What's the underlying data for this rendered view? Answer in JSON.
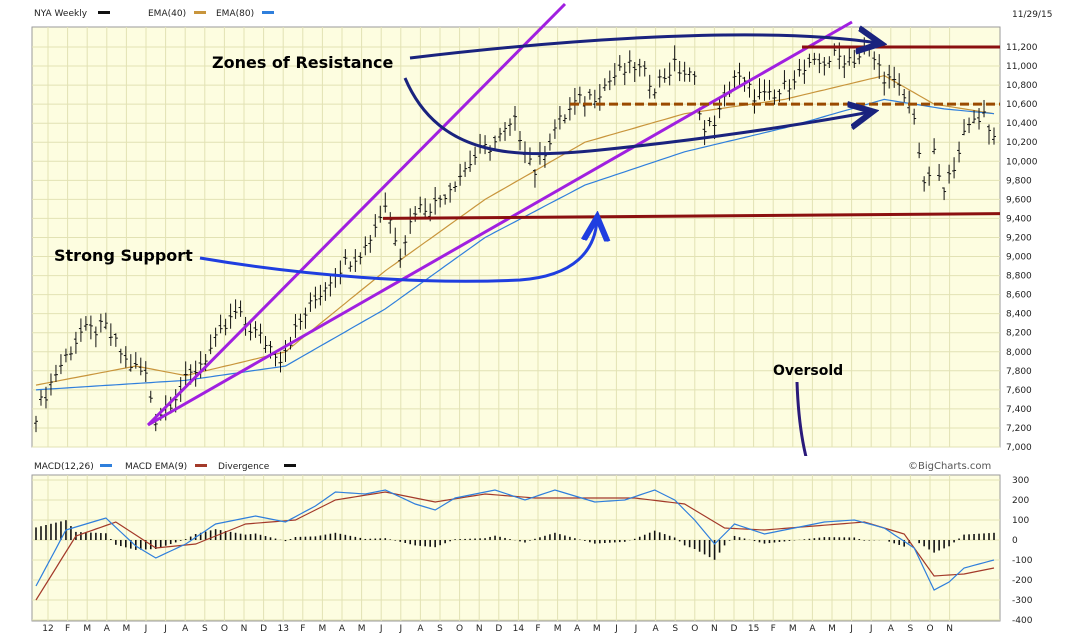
{
  "header": {
    "symbol_label": "NYA Weekly",
    "ema40_label": "EMA(40)",
    "ema80_label": "EMA(80)",
    "date": "11/29/15",
    "watermark": "©BigCharts.com",
    "macd_label": "MACD(12,26)",
    "macd_ema_label": "MACD EMA(9)",
    "divergence_label": "Divergence"
  },
  "colors": {
    "plot_bg": "#fdfde0",
    "grid": "#e2e2b4",
    "price_bars": "#111111",
    "ema40": "#c8953c",
    "ema80": "#2f7fdc",
    "macd_line": "#2f7fdc",
    "macd_signal": "#a33a2a",
    "histogram": "#111111",
    "trend_lines": "#a020e0",
    "resistance": "#8b1010",
    "dashed_resistance": "#9a4a00",
    "support": "#8b1010",
    "arrow_navy": "#1a237e",
    "arrow_blue": "#1f3ee0",
    "arrow_purple": "#2a1a7a"
  },
  "annotations": {
    "resistance": "Zones of Resistance",
    "support": "Strong Support",
    "oversold": "Oversold"
  },
  "chart_data": [
    {
      "type": "bar",
      "name": "NYA weekly price",
      "y_ticks": [
        "11,200",
        "11,000",
        "10,800",
        "10,600",
        "10,400",
        "10,200",
        "10,000",
        "9,800",
        "9,600",
        "9,400",
        "9,200",
        "9,000",
        "8,800",
        "8,600",
        "8,400",
        "8,200",
        "8,000",
        "7,800",
        "7,600",
        "7,400",
        "7,200",
        "7,000"
      ],
      "ylim": [
        7000,
        11300
      ],
      "x_ticks": [
        "12",
        "F",
        "M",
        "A",
        "M",
        "J",
        "J",
        "A",
        "S",
        "O",
        "N",
        "D",
        "13",
        "F",
        "M",
        "A",
        "M",
        "J",
        "J",
        "A",
        "S",
        "O",
        "N",
        "D",
        "14",
        "F",
        "M",
        "A",
        "M",
        "J",
        "J",
        "A",
        "S",
        "O",
        "N",
        "D",
        "15",
        "F",
        "M",
        "A",
        "M",
        "J",
        "J",
        "A",
        "S",
        "O",
        "N"
      ],
      "anchors": [
        {
          "t": 0,
          "v": 7350
        },
        {
          "t": 4,
          "v": 7780
        },
        {
          "t": 9,
          "v": 8200
        },
        {
          "t": 14,
          "v": 8250
        },
        {
          "t": 18,
          "v": 7900
        },
        {
          "t": 22,
          "v": 7750
        },
        {
          "t": 24,
          "v": 7300
        },
        {
          "t": 28,
          "v": 7550
        },
        {
          "t": 34,
          "v": 7950
        },
        {
          "t": 40,
          "v": 8400
        },
        {
          "t": 45,
          "v": 8150
        },
        {
          "t": 49,
          "v": 7950
        },
        {
          "t": 54,
          "v": 8400
        },
        {
          "t": 60,
          "v": 8850
        },
        {
          "t": 66,
          "v": 9100
        },
        {
          "t": 70,
          "v": 9550
        },
        {
          "t": 73,
          "v": 9050
        },
        {
          "t": 76,
          "v": 9500
        },
        {
          "t": 80,
          "v": 9550
        },
        {
          "t": 84,
          "v": 9800
        },
        {
          "t": 88,
          "v": 10050
        },
        {
          "t": 92,
          "v": 10200
        },
        {
          "t": 96,
          "v": 10400
        },
        {
          "t": 100,
          "v": 9900
        },
        {
          "t": 104,
          "v": 10350
        },
        {
          "t": 108,
          "v": 10600
        },
        {
          "t": 112,
          "v": 10700
        },
        {
          "t": 116,
          "v": 10900
        },
        {
          "t": 120,
          "v": 11000
        },
        {
          "t": 124,
          "v": 10800
        },
        {
          "t": 128,
          "v": 11000
        },
        {
          "t": 132,
          "v": 10850
        },
        {
          "t": 134,
          "v": 10300
        },
        {
          "t": 137,
          "v": 10500
        },
        {
          "t": 140,
          "v": 10900
        },
        {
          "t": 144,
          "v": 10700
        },
        {
          "t": 148,
          "v": 10650
        },
        {
          "t": 152,
          "v": 10900
        },
        {
          "t": 156,
          "v": 11000
        },
        {
          "t": 160,
          "v": 11100
        },
        {
          "t": 164,
          "v": 11080
        },
        {
          "t": 167,
          "v": 11150
        },
        {
          "t": 170,
          "v": 10900
        },
        {
          "t": 173,
          "v": 10750
        },
        {
          "t": 176,
          "v": 10500
        },
        {
          "t": 178,
          "v": 9700
        },
        {
          "t": 180,
          "v": 10050
        },
        {
          "t": 182,
          "v": 9650
        },
        {
          "t": 185,
          "v": 10150
        },
        {
          "t": 188,
          "v": 10450
        },
        {
          "t": 190,
          "v": 10500
        },
        {
          "t": 192,
          "v": 10250
        }
      ],
      "ema40_anchors": [
        {
          "t": 0,
          "v": 7650
        },
        {
          "t": 20,
          "v": 7850
        },
        {
          "t": 30,
          "v": 7750
        },
        {
          "t": 50,
          "v": 8000
        },
        {
          "t": 70,
          "v": 8850
        },
        {
          "t": 90,
          "v": 9600
        },
        {
          "t": 110,
          "v": 10200
        },
        {
          "t": 130,
          "v": 10500
        },
        {
          "t": 150,
          "v": 10650
        },
        {
          "t": 170,
          "v": 10900
        },
        {
          "t": 180,
          "v": 10600
        },
        {
          "t": 192,
          "v": 10500
        }
      ],
      "ema80_anchors": [
        {
          "t": 0,
          "v": 7600
        },
        {
          "t": 30,
          "v": 7700
        },
        {
          "t": 50,
          "v": 7850
        },
        {
          "t": 70,
          "v": 8450
        },
        {
          "t": 90,
          "v": 9200
        },
        {
          "t": 110,
          "v": 9750
        },
        {
          "t": 130,
          "v": 10100
        },
        {
          "t": 150,
          "v": 10350
        },
        {
          "t": 170,
          "v": 10650
        },
        {
          "t": 182,
          "v": 10550
        },
        {
          "t": 192,
          "v": 10500
        }
      ],
      "levels": {
        "resistance": 11200,
        "dashed_resistance": 10600,
        "support_start": 9400,
        "support_end": 9450
      }
    },
    {
      "type": "line",
      "name": "MACD",
      "y_ticks": [
        "300",
        "200",
        "100",
        "0",
        "-100",
        "-200",
        "-300",
        "-400"
      ],
      "ylim": [
        -400,
        300
      ],
      "macd_anchors": [
        {
          "t": 0,
          "v": -230
        },
        {
          "t": 6,
          "v": 50
        },
        {
          "t": 14,
          "v": 110
        },
        {
          "t": 20,
          "v": -30
        },
        {
          "t": 24,
          "v": -90
        },
        {
          "t": 30,
          "v": -20
        },
        {
          "t": 36,
          "v": 80
        },
        {
          "t": 44,
          "v": 120
        },
        {
          "t": 50,
          "v": 90
        },
        {
          "t": 56,
          "v": 170
        },
        {
          "t": 60,
          "v": 240
        },
        {
          "t": 66,
          "v": 230
        },
        {
          "t": 70,
          "v": 250
        },
        {
          "t": 76,
          "v": 180
        },
        {
          "t": 80,
          "v": 150
        },
        {
          "t": 84,
          "v": 210
        },
        {
          "t": 92,
          "v": 250
        },
        {
          "t": 98,
          "v": 200
        },
        {
          "t": 104,
          "v": 250
        },
        {
          "t": 108,
          "v": 220
        },
        {
          "t": 112,
          "v": 190
        },
        {
          "t": 118,
          "v": 200
        },
        {
          "t": 124,
          "v": 250
        },
        {
          "t": 128,
          "v": 200
        },
        {
          "t": 132,
          "v": 100
        },
        {
          "t": 136,
          "v": -20
        },
        {
          "t": 140,
          "v": 80
        },
        {
          "t": 146,
          "v": 30
        },
        {
          "t": 152,
          "v": 60
        },
        {
          "t": 158,
          "v": 90
        },
        {
          "t": 164,
          "v": 100
        },
        {
          "t": 170,
          "v": 60
        },
        {
          "t": 176,
          "v": -40
        },
        {
          "t": 180,
          "v": -250
        },
        {
          "t": 183,
          "v": -210
        },
        {
          "t": 186,
          "v": -140
        },
        {
          "t": 192,
          "v": -100
        }
      ],
      "signal_anchors": [
        {
          "t": 0,
          "v": -300
        },
        {
          "t": 8,
          "v": 20
        },
        {
          "t": 16,
          "v": 90
        },
        {
          "t": 24,
          "v": -40
        },
        {
          "t": 32,
          "v": -20
        },
        {
          "t": 42,
          "v": 80
        },
        {
          "t": 52,
          "v": 100
        },
        {
          "t": 60,
          "v": 200
        },
        {
          "t": 70,
          "v": 240
        },
        {
          "t": 80,
          "v": 190
        },
        {
          "t": 90,
          "v": 230
        },
        {
          "t": 100,
          "v": 210
        },
        {
          "t": 110,
          "v": 210
        },
        {
          "t": 120,
          "v": 210
        },
        {
          "t": 130,
          "v": 180
        },
        {
          "t": 138,
          "v": 60
        },
        {
          "t": 146,
          "v": 50
        },
        {
          "t": 156,
          "v": 70
        },
        {
          "t": 166,
          "v": 90
        },
        {
          "t": 174,
          "v": 30
        },
        {
          "t": 180,
          "v": -180
        },
        {
          "t": 186,
          "v": -170
        },
        {
          "t": 192,
          "v": -140
        }
      ]
    }
  ]
}
